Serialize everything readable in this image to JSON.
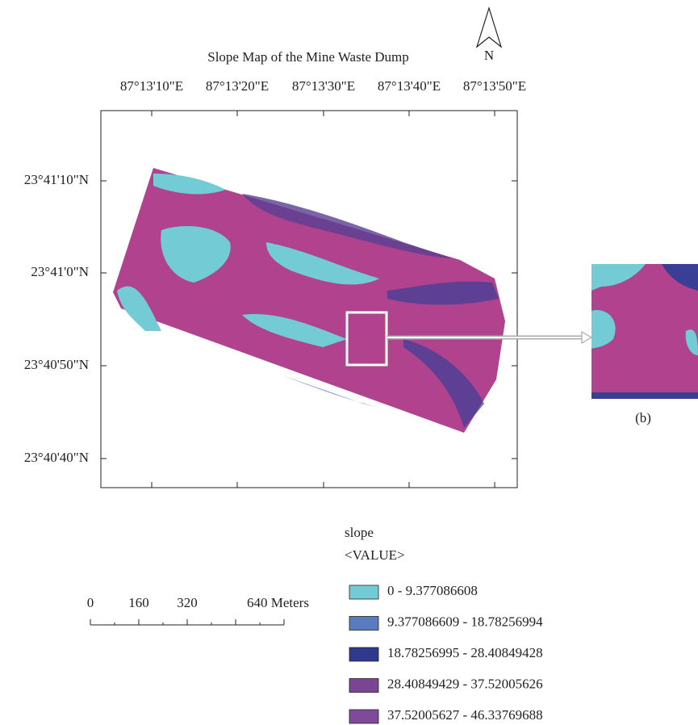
{
  "title": "Slope Map of the Mine Waste Dump",
  "north": "N",
  "x_labels": [
    "87°13'10\"E",
    "87°13'20\"E",
    "87°13'30\"E",
    "87°13'40\"E",
    "87°13'50\"E"
  ],
  "y_labels": [
    "23°41'10\"N",
    "23°41'0\"N",
    "23°40'50\"N",
    "23°40'40\"N"
  ],
  "scale_bar": {
    "labels": [
      "0",
      "160",
      "320",
      "640 Meters"
    ]
  },
  "legend": {
    "title": "slope",
    "subtitle": "<VALUE>",
    "items": [
      {
        "label": "0 - 9.377086608",
        "color": "#72cbd5"
      },
      {
        "label": "9.377086609 - 18.78256994",
        "color": "#5a7bbf"
      },
      {
        "label": "18.78256995 - 28.40849428",
        "color": "#2f3a8e"
      },
      {
        "label": "28.40849429 - 37.52005626",
        "color": "#7a4593"
      },
      {
        "label": "37.52005627 - 46.33769688",
        "color": "#7f4a9b"
      }
    ]
  },
  "inset_label": "(b)"
}
